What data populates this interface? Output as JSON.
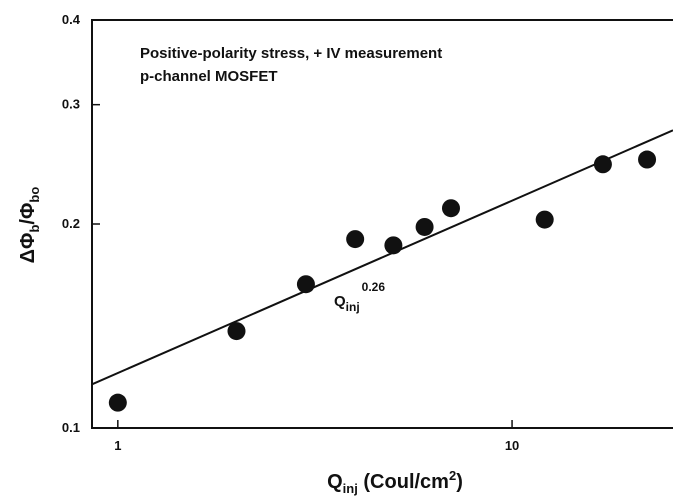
{
  "chart_data": {
    "type": "scatter",
    "title_lines": [
      "Positive-polarity stress, + IV measurement",
      "p-channel MOSFET"
    ],
    "xlabel": [
      "Q",
      "inj",
      " (Coul/cm",
      "2",
      ")"
    ],
    "ylabel": [
      "ΔΦ",
      "b",
      "/Φ",
      "bo"
    ],
    "annotation": [
      "Q",
      "inj",
      "0.26"
    ],
    "xscale": "log",
    "yscale": "log",
    "xlim": [
      0.86,
      25.6
    ],
    "ylim": [
      0.1,
      0.4
    ],
    "xticks": [
      1,
      10
    ],
    "yticks": [
      0.1,
      0.2,
      0.3,
      0.4
    ],
    "series": [
      {
        "color": "#111111",
        "x": [
          1,
          2,
          3,
          4,
          5,
          6,
          7,
          12.1,
          17,
          22
        ],
        "values": [
          0.109,
          0.139,
          0.163,
          0.19,
          0.186,
          0.198,
          0.211,
          0.203,
          0.245,
          0.249
        ]
      }
    ],
    "fit": {
      "color": "#111111",
      "x": [
        0.86,
        25.6
      ],
      "values": [
        0.116,
        0.275
      ]
    }
  }
}
